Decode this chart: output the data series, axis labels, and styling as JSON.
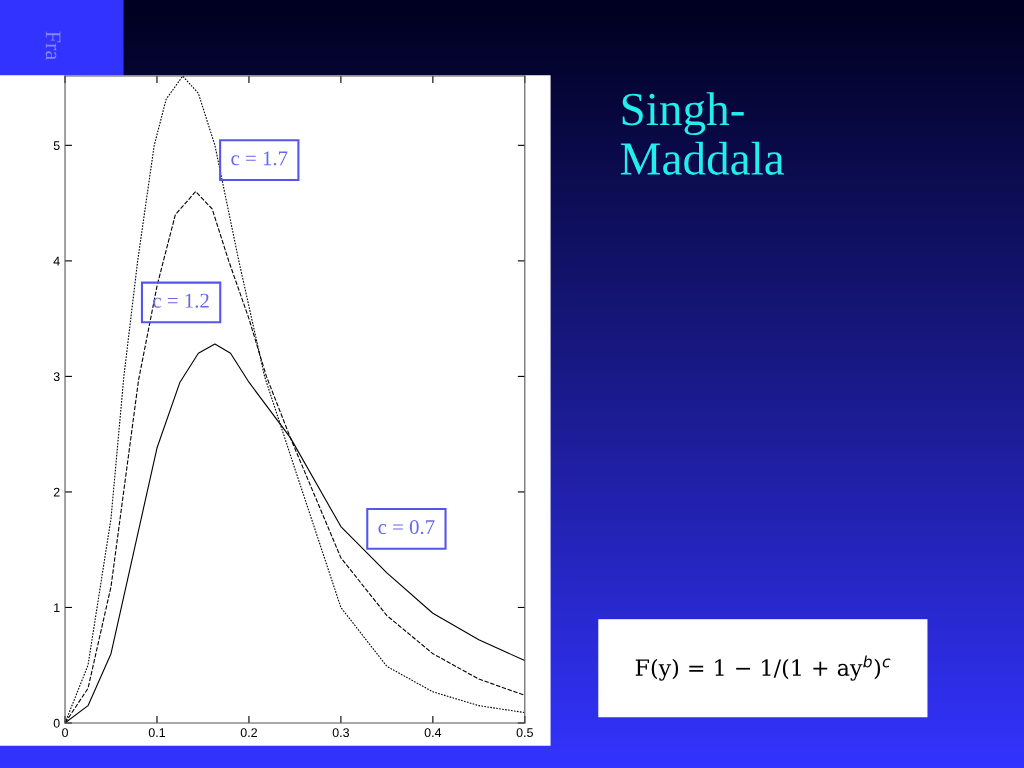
{
  "chart_data": {
    "type": "line",
    "title": "Singh-\nMaddala",
    "subtitle": "Fra",
    "xlim": [
      0,
      0.5
    ],
    "ylim": [
      0,
      5.6
    ],
    "xticks": [
      0,
      0.1,
      0.2,
      0.3,
      0.4,
      0.5
    ],
    "yticks": [
      0,
      1,
      2,
      3,
      4,
      5
    ],
    "grid": false,
    "legend": false,
    "series": [
      {
        "color": "#000000",
        "line_style": "dotted",
        "x": [
          0,
          0.025,
          0.05,
          0.064,
          0.079,
          0.097,
          0.11,
          0.128,
          0.145,
          0.163,
          0.189,
          0.217,
          0.25,
          0.3,
          0.35,
          0.4,
          0.45,
          0.5
        ],
        "values": [
          0,
          0.5,
          1.77,
          3,
          4,
          5,
          5.4,
          5.6,
          5.45,
          5,
          4,
          3,
          2.2,
          1.0,
          0.49,
          0.27,
          0.15,
          0.09
        ]
      },
      {
        "color": "#000000",
        "line_style": "dashed",
        "x": [
          0,
          0.025,
          0.05,
          0.08,
          0.1,
          0.107,
          0.12,
          0.142,
          0.16,
          0.178,
          0.2,
          0.219,
          0.245,
          0.3,
          0.35,
          0.4,
          0.45,
          0.5
        ],
        "values": [
          0,
          0.3,
          1.18,
          2.97,
          3.78,
          4,
          4.4,
          4.6,
          4.45,
          4,
          3.5,
          3,
          2.47,
          1.43,
          0.93,
          0.6,
          0.38,
          0.24
        ]
      },
      {
        "color": "#000000",
        "line_style": "solid",
        "x": [
          0,
          0.025,
          0.05,
          0.075,
          0.1,
          0.125,
          0.145,
          0.163,
          0.18,
          0.2,
          0.245,
          0.3,
          0.35,
          0.4,
          0.45,
          0.5
        ],
        "values": [
          0,
          0.15,
          0.6,
          1.49,
          2.38,
          2.95,
          3.2,
          3.28,
          3.2,
          2.95,
          2.47,
          1.7,
          1.3,
          0.95,
          0.72,
          0.54
        ]
      }
    ],
    "annotations": [
      "c = 1.7",
      "c = 1.2",
      "c = 0.7",
      "F(y) = 1 − 1/(1 + ay$^{b}$)$^{c}$"
    ]
  }
}
